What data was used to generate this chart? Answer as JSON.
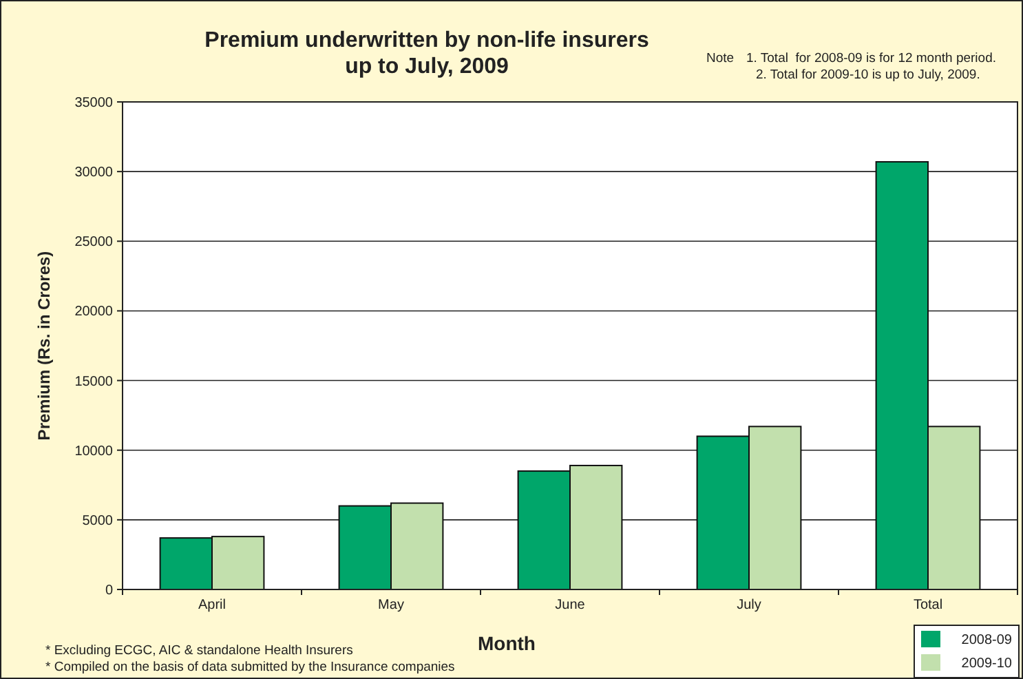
{
  "chart_data": {
    "type": "bar",
    "title": "Premium underwritten by non-life insurers\nup to July, 2009",
    "xlabel": "Month",
    "ylabel": "Premium (Rs. in Crores)",
    "annotations": [
      "Note",
      "1. Total  for 2008-09 is for 12 month period.",
      "2. Total for 2009-10 is up to July, 2009.",
      "* Excluding ECGC, AIC & standalone Health Insurers",
      "* Compiled on the basis of data submitted by the Insurance companies"
    ],
    "categories": [
      "April",
      "May",
      "June",
      "July",
      "Total"
    ],
    "series": [
      {
        "name": "2008-09",
        "color": "#00a66a",
        "values": [
          3700,
          6000,
          8500,
          11000,
          30700
        ]
      },
      {
        "name": "2009-10",
        "color": "#c2e0ad",
        "values": [
          3800,
          6200,
          8900,
          11700,
          11700
        ]
      }
    ],
    "ylim": [
      0,
      35000
    ],
    "yticks": [
      0,
      5000,
      10000,
      15000,
      20000,
      25000,
      30000,
      35000
    ],
    "grid": "y",
    "legend": "bottom right"
  }
}
